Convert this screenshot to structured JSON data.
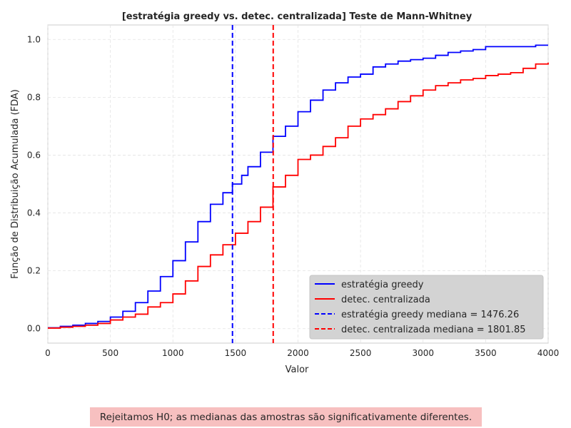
{
  "chart_data": {
    "type": "line",
    "title": "[estratégia greedy vs. detec. centralizada] Teste de Mann-Whitney",
    "xlabel": "Valor",
    "ylabel": "Função de Distribuição Acumulada (FDA)",
    "xlim": [
      0,
      4000
    ],
    "ylim": [
      -0.05,
      1.05
    ],
    "xticks": [
      "0",
      "500",
      "1000",
      "1500",
      "2000",
      "2500",
      "3000",
      "3500",
      "4000"
    ],
    "yticks": [
      "0.0",
      "0.2",
      "0.4",
      "0.6",
      "0.8",
      "1.0"
    ],
    "grid": true,
    "legend_position": "lower-right",
    "series": [
      {
        "name": "estratégia greedy",
        "color": "#0000ff",
        "style": "solid",
        "x": [
          0,
          100,
          200,
          300,
          400,
          500,
          600,
          700,
          800,
          900,
          1000,
          1100,
          1200,
          1300,
          1400,
          1476,
          1550,
          1600,
          1700,
          1800,
          1900,
          2000,
          2100,
          2200,
          2300,
          2400,
          2500,
          2600,
          2700,
          2800,
          2900,
          3000,
          3100,
          3200,
          3300,
          3400,
          3500,
          3600,
          3700,
          3800,
          3900,
          4000
        ],
        "y": [
          0.003,
          0.008,
          0.012,
          0.018,
          0.025,
          0.04,
          0.06,
          0.09,
          0.13,
          0.18,
          0.235,
          0.3,
          0.37,
          0.43,
          0.47,
          0.5,
          0.53,
          0.56,
          0.61,
          0.665,
          0.7,
          0.75,
          0.79,
          0.825,
          0.85,
          0.87,
          0.88,
          0.905,
          0.915,
          0.925,
          0.93,
          0.935,
          0.945,
          0.955,
          0.96,
          0.965,
          0.975,
          0.975,
          0.975,
          0.975,
          0.98,
          0.98
        ]
      },
      {
        "name": "detec. centralizada",
        "color": "#ff0000",
        "style": "solid",
        "x": [
          0,
          100,
          200,
          300,
          400,
          500,
          600,
          700,
          800,
          900,
          1000,
          1100,
          1200,
          1300,
          1400,
          1500,
          1600,
          1700,
          1800,
          1900,
          2000,
          2100,
          2200,
          2300,
          2400,
          2500,
          2600,
          2700,
          2800,
          2900,
          3000,
          3100,
          3200,
          3300,
          3400,
          3500,
          3600,
          3700,
          3800,
          3900,
          4000
        ],
        "y": [
          0.002,
          0.005,
          0.008,
          0.012,
          0.018,
          0.03,
          0.04,
          0.05,
          0.075,
          0.09,
          0.12,
          0.165,
          0.215,
          0.255,
          0.29,
          0.33,
          0.37,
          0.42,
          0.49,
          0.53,
          0.585,
          0.6,
          0.63,
          0.66,
          0.7,
          0.725,
          0.74,
          0.76,
          0.785,
          0.805,
          0.825,
          0.84,
          0.85,
          0.86,
          0.865,
          0.875,
          0.88,
          0.885,
          0.9,
          0.915,
          0.92
        ]
      },
      {
        "name": "estratégia greedy mediana = 1476.26",
        "color": "#0000ff",
        "style": "dashed",
        "vline": 1476.26
      },
      {
        "name": "detec. centralizada mediana = 1801.85",
        "color": "#ff0000",
        "style": "dashed",
        "vline": 1801.85
      }
    ]
  },
  "conclusion": {
    "text": "Rejeitamos H0; as medianas das amostras são significativamente diferentes.",
    "background": "#f7c0c0"
  }
}
